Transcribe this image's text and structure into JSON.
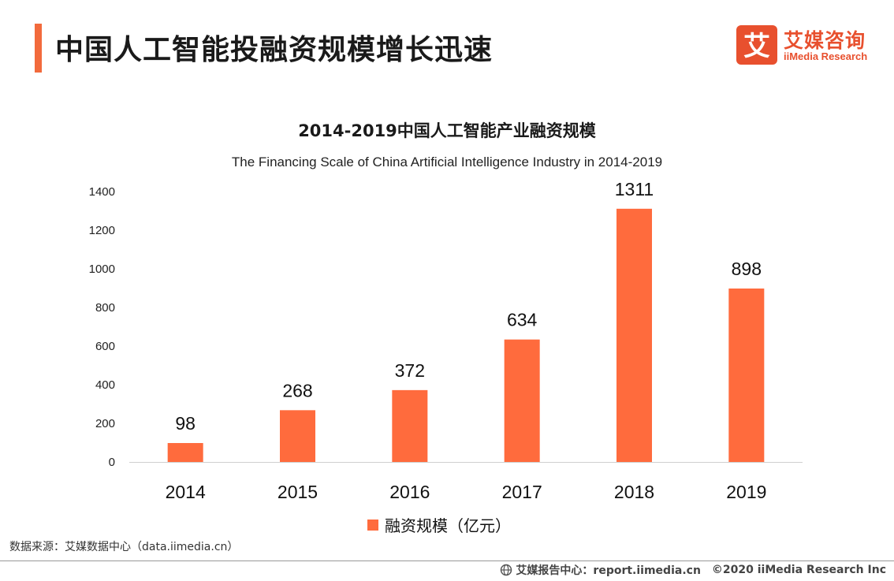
{
  "header": {
    "title": "中国人工智能投融资规模增长迅速",
    "accent_color": "#f26a3c"
  },
  "logo": {
    "mark": "艾",
    "name": "艾媒咨询",
    "sub": "iiMedia Research",
    "color": "#e8502e"
  },
  "chart_data": {
    "type": "bar",
    "title": "2014-2019中国人工智能产业融资规模",
    "subtitle": "The Financing Scale of China Artificial Intelligence Industry  in 2014-2019",
    "categories": [
      "2014",
      "2015",
      "2016",
      "2017",
      "2018",
      "2019"
    ],
    "series": [
      {
        "name": "融资规模（亿元）",
        "values": [
          98,
          268,
          372,
          634,
          1311,
          898
        ],
        "color": "#ff6b3d"
      }
    ],
    "ylim": [
      0,
      1400
    ],
    "yticks": [
      0,
      200,
      400,
      600,
      800,
      1000,
      1200,
      1400
    ],
    "grid": false,
    "legend": "bottom-center"
  },
  "source": "数据来源：艾媒数据中心（data.iimedia.cn）",
  "footer": {
    "report": "艾媒报告中心：report.iimedia.cn",
    "copyright": "©2020  iiMedia Research  Inc",
    "icon": "globe-icon"
  }
}
